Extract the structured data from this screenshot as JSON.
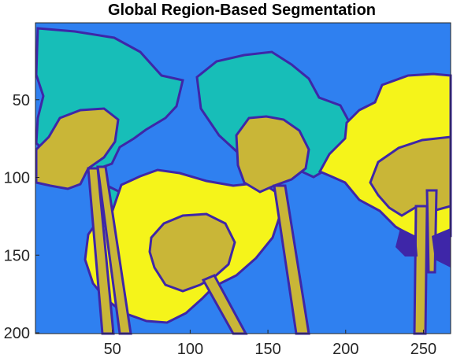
{
  "chart_data": {
    "type": "heatmap",
    "title": "Global Region-Based Segmentation",
    "xlabel": "",
    "ylabel": "",
    "xlim": [
      0.5,
      267.5
    ],
    "ylim": [
      0.5,
      200.5
    ],
    "y_reversed": true,
    "xticks": [
      50,
      100,
      150,
      200,
      250
    ],
    "yticks": [
      50,
      100,
      150,
      200
    ],
    "image_size": [
      267,
      200
    ],
    "labels": [
      {
        "id": 1,
        "color": "#3E26A8",
        "role": "boundary"
      },
      {
        "id": 2,
        "color": "#2F80F0",
        "role": "background"
      },
      {
        "id": 3,
        "color": "#17BEB8",
        "role": "region"
      },
      {
        "id": 4,
        "color": "#C9B637",
        "role": "region"
      },
      {
        "id": 5,
        "color": "#F5F41A",
        "role": "region"
      }
    ]
  }
}
